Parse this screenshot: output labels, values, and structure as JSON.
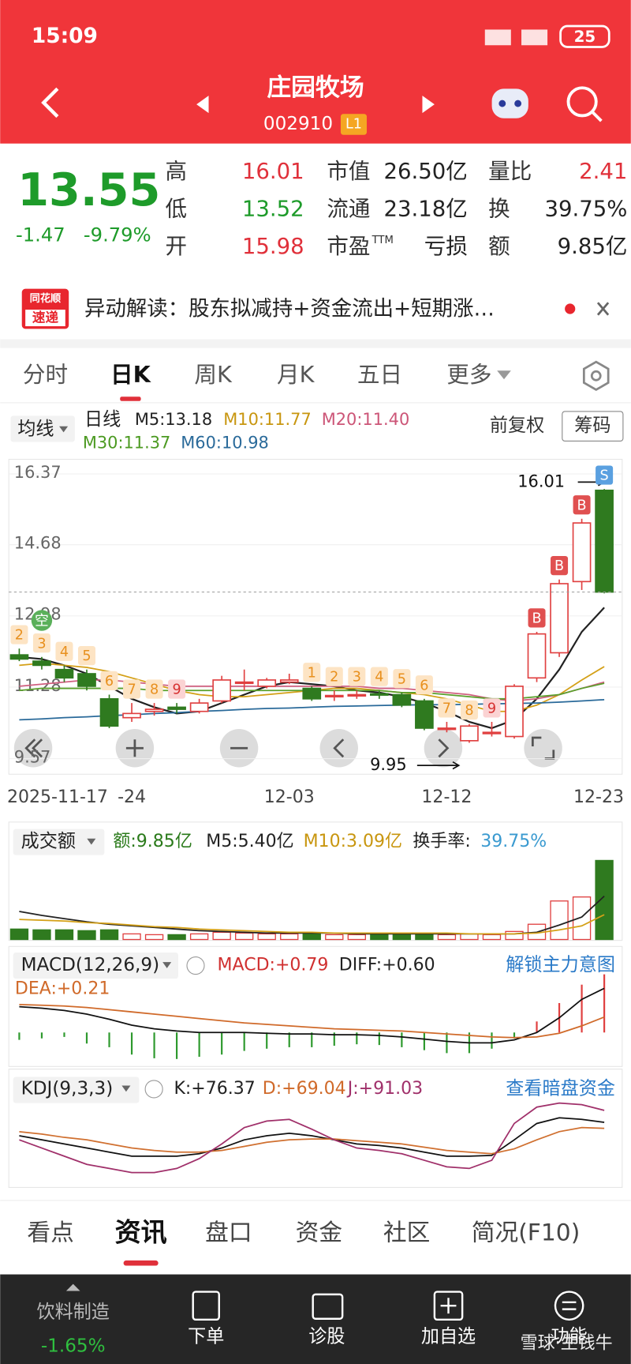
{
  "status": {
    "time": "15:09",
    "battery": "25"
  },
  "header": {
    "title": "庄园牧场",
    "code": "002910",
    "level": "L1"
  },
  "quote": {
    "price": "13.55",
    "change": "-1.47",
    "pct": "-9.79%",
    "fields": [
      [
        {
          "label": "高",
          "value": "16.01"
        },
        {
          "label": "市值",
          "value": "26.50亿"
        },
        {
          "label": "量比",
          "value": "2.41"
        }
      ],
      [
        {
          "label": "低",
          "value": "13.52"
        },
        {
          "label": "流通",
          "value": "23.18亿"
        },
        {
          "label": "换",
          "value": "39.75%"
        }
      ],
      [
        {
          "label": "开",
          "value": "15.98"
        },
        {
          "label": "市盈",
          "sup": "TTM",
          "value": "亏损"
        },
        {
          "label": "额",
          "value": "9.85亿"
        }
      ]
    ]
  },
  "news": {
    "logo_top": "同花顺",
    "logo_bottom": "速递",
    "text": "异动解读：股东拟减持+资金流出+短期涨…"
  },
  "tabs": {
    "items": [
      "分时",
      "日K",
      "周K",
      "月K",
      "五日",
      "更多"
    ],
    "active": 1
  },
  "ma_bar": {
    "selector": "均线",
    "period": "日线",
    "labels": [
      {
        "text": "M5:13.18",
        "color": "#222222"
      },
      {
        "text": "M10:11.77",
        "color": "#c8960f"
      },
      {
        "text": "M20:11.40",
        "color": "#cc5577"
      },
      {
        "text": "M30:11.37",
        "color": "#4c9a22"
      },
      {
        "text": "M60:10.98",
        "color": "#2a6a9a"
      }
    ],
    "adjust": "前复权",
    "chips": "筹码"
  },
  "kline": {
    "type": "candlestick",
    "ylim": [
      9.2,
      16.72
    ],
    "yticks": [
      16.37,
      14.68,
      12.98,
      11.28,
      9.57
    ],
    "categories": [
      "2025-11-17",
      null,
      null,
      null,
      null,
      "-24",
      null,
      null,
      null,
      null,
      null,
      null,
      "12-03",
      null,
      null,
      null,
      null,
      null,
      null,
      "12-12",
      null,
      null,
      null,
      null,
      null,
      null,
      "12-23"
    ],
    "open": [
      12.05,
      11.9,
      11.7,
      11.6,
      11.0,
      10.55,
      10.7,
      10.8,
      10.7,
      10.95,
      11.4,
      11.3,
      11.4,
      11.25,
      11.05,
      11.1,
      11.12,
      11.1,
      10.95,
      10.3,
      10.0,
      10.2,
      10.1,
      11.5,
      12.1,
      13.8,
      15.98
    ],
    "high": [
      12.2,
      12.0,
      11.8,
      11.7,
      11.1,
      10.9,
      10.9,
      10.9,
      11.0,
      11.55,
      11.7,
      11.5,
      11.6,
      11.3,
      11.2,
      11.2,
      11.2,
      11.15,
      11.0,
      10.45,
      10.4,
      10.45,
      11.35,
      12.6,
      13.85,
      15.3,
      16.01
    ],
    "low": [
      11.9,
      11.7,
      11.4,
      11.2,
      10.3,
      10.45,
      10.6,
      10.65,
      10.65,
      10.9,
      11.2,
      11.25,
      11.35,
      10.95,
      10.95,
      11.0,
      11.0,
      10.8,
      10.25,
      10.2,
      9.95,
      10.1,
      10.05,
      11.4,
      12.0,
      13.6,
      13.52
    ],
    "close": [
      11.95,
      11.8,
      11.5,
      11.3,
      10.35,
      10.65,
      10.75,
      10.75,
      10.9,
      11.45,
      11.4,
      11.45,
      11.45,
      11.0,
      11.08,
      11.1,
      11.1,
      10.85,
      10.3,
      10.3,
      10.35,
      10.2,
      11.3,
      12.55,
      13.75,
      15.2,
      13.55
    ],
    "ma": [
      {
        "name": "M5",
        "color": "#222222",
        "values": [
          12.0,
          11.95,
          11.8,
          11.6,
          11.3,
          11.0,
          10.8,
          10.65,
          10.7,
          10.9,
          11.1,
          11.3,
          11.4,
          11.35,
          11.3,
          11.2,
          11.15,
          11.05,
          10.9,
          10.7,
          10.45,
          10.3,
          10.5,
          11.0,
          11.7,
          12.6,
          13.18
        ]
      },
      {
        "name": "M10",
        "color": "#d4a017",
        "values": [
          11.8,
          11.85,
          11.8,
          11.75,
          11.65,
          11.5,
          11.35,
          11.2,
          11.1,
          11.05,
          11.05,
          11.1,
          11.15,
          11.2,
          11.25,
          11.25,
          11.2,
          11.15,
          11.1,
          11.0,
          10.85,
          10.7,
          10.7,
          10.85,
          11.1,
          11.45,
          11.77
        ]
      },
      {
        "name": "M20",
        "color": "#d06080",
        "values": [
          11.3,
          11.35,
          11.4,
          11.45,
          11.45,
          11.4,
          11.35,
          11.3,
          11.3,
          11.3,
          11.3,
          11.3,
          11.3,
          11.3,
          11.3,
          11.3,
          11.25,
          11.25,
          11.2,
          11.15,
          11.1,
          11.0,
          10.95,
          11.0,
          11.1,
          11.25,
          11.4
        ]
      },
      {
        "name": "M30",
        "color": "#5aa02c",
        "values": [
          11.2,
          11.25,
          11.25,
          11.25,
          11.25,
          11.25,
          11.2,
          11.2,
          11.2,
          11.2,
          11.2,
          11.2,
          11.2,
          11.2,
          11.2,
          11.2,
          11.2,
          11.15,
          11.15,
          11.1,
          11.05,
          11.0,
          11.0,
          11.05,
          11.1,
          11.25,
          11.37
        ]
      },
      {
        "name": "M60",
        "color": "#2a6a9a",
        "values": [
          10.5,
          10.52,
          10.55,
          10.57,
          10.6,
          10.62,
          10.65,
          10.67,
          10.7,
          10.72,
          10.75,
          10.77,
          10.78,
          10.8,
          10.82,
          10.83,
          10.84,
          10.85,
          10.86,
          10.86,
          10.87,
          10.88,
          10.89,
          10.9,
          10.92,
          10.95,
          10.98
        ]
      }
    ],
    "high_label": "16.01",
    "low_label": "9.95",
    "badges": [
      {
        "label": "2",
        "day": 0
      },
      {
        "label": "3",
        "day": 1
      },
      {
        "label": "空",
        "day": 1
      },
      {
        "label": "4",
        "day": 2
      },
      {
        "label": "5",
        "day": 3
      },
      {
        "label": "6",
        "day": 4
      },
      {
        "label": "7",
        "day": 5
      },
      {
        "label": "8",
        "day": 6
      },
      {
        "label": "9",
        "day": 7
      },
      {
        "label": "1",
        "day": 13
      },
      {
        "label": "2",
        "day": 14
      },
      {
        "label": "3",
        "day": 15
      },
      {
        "label": "4",
        "day": 16
      },
      {
        "label": "5",
        "day": 17
      },
      {
        "label": "6",
        "day": 18
      },
      {
        "label": "7",
        "day": 19
      },
      {
        "label": "8",
        "day": 20
      },
      {
        "label": "9",
        "day": 21
      },
      {
        "label": "B",
        "day": 23
      },
      {
        "label": "B",
        "day": 24
      },
      {
        "label": "B",
        "day": 25
      },
      {
        "label": "S",
        "day": 26
      }
    ]
  },
  "volume": {
    "selector": "成交额",
    "amount": "额:9.85亿",
    "m5": "M5:5.40亿",
    "m10": "M10:3.09亿",
    "turnover_label": "换手率:",
    "turnover": "39.75%",
    "ylim": [
      0,
      10.3
    ],
    "values": [
      1.3,
      1.2,
      1.2,
      1.1,
      1.2,
      0.7,
      0.6,
      0.6,
      0.7,
      0.9,
      0.8,
      0.7,
      0.7,
      0.8,
      0.6,
      0.6,
      0.6,
      0.7,
      0.8,
      0.6,
      0.7,
      0.6,
      1.0,
      1.9,
      4.8,
      5.3,
      9.85
    ],
    "ma5": [
      3.5,
      3.0,
      2.6,
      2.2,
      1.9,
      1.7,
      1.5,
      1.3,
      1.1,
      1.0,
      0.9,
      0.8,
      0.8,
      0.8,
      0.8,
      0.7,
      0.7,
      0.7,
      0.7,
      0.7,
      0.7,
      0.7,
      0.7,
      0.9,
      1.8,
      2.8,
      5.4
    ],
    "ma10": [
      2.5,
      2.4,
      2.3,
      2.1,
      2.0,
      1.8,
      1.6,
      1.5,
      1.3,
      1.2,
      1.1,
      1.0,
      0.9,
      0.9,
      0.8,
      0.8,
      0.8,
      0.8,
      0.8,
      0.8,
      0.7,
      0.7,
      0.7,
      0.8,
      1.2,
      1.7,
      3.09
    ]
  },
  "macd": {
    "name": "MACD(12,26,9)",
    "macd": "MACD:+0.79",
    "diff": "DIFF:+0.60",
    "dea": "DEA:+0.21",
    "link": "解锁主力意图",
    "ylim": [
      -0.45,
      0.85
    ],
    "hist": [
      -0.1,
      -0.08,
      -0.06,
      -0.15,
      -0.2,
      -0.3,
      -0.35,
      -0.36,
      -0.33,
      -0.3,
      -0.25,
      -0.22,
      -0.2,
      -0.2,
      -0.18,
      -0.16,
      -0.17,
      -0.2,
      -0.24,
      -0.28,
      -0.28,
      -0.22,
      -0.08,
      0.15,
      0.4,
      0.65,
      0.79
    ],
    "diff_values": [
      0.35,
      0.33,
      0.3,
      0.25,
      0.18,
      0.1,
      0.05,
      0.02,
      0.0,
      0.0,
      0.0,
      -0.01,
      -0.02,
      -0.02,
      -0.03,
      -0.03,
      -0.04,
      -0.06,
      -0.09,
      -0.12,
      -0.14,
      -0.14,
      -0.1,
      0.0,
      0.2,
      0.45,
      0.6
    ],
    "dea_values": [
      0.38,
      0.37,
      0.36,
      0.34,
      0.31,
      0.28,
      0.25,
      0.22,
      0.19,
      0.16,
      0.13,
      0.11,
      0.09,
      0.07,
      0.05,
      0.04,
      0.03,
      0.02,
      0.0,
      -0.02,
      -0.04,
      -0.06,
      -0.07,
      -0.06,
      -0.01,
      0.09,
      0.21
    ]
  },
  "kdj": {
    "name": "KDJ(9,3,3)",
    "k": "K:+76.37",
    "d": "D:+69.04",
    "j": "J:+91.03",
    "link": "查看暗盘资金",
    "ylim": [
      0,
      100
    ],
    "k_values": [
      60,
      55,
      50,
      45,
      40,
      35,
      35,
      35,
      38,
      45,
      55,
      60,
      63,
      60,
      55,
      50,
      48,
      45,
      40,
      35,
      35,
      36,
      55,
      75,
      82,
      80,
      76.37
    ],
    "d_values": [
      65,
      62,
      58,
      55,
      50,
      45,
      42,
      40,
      40,
      42,
      47,
      52,
      55,
      56,
      56,
      54,
      52,
      50,
      46,
      42,
      40,
      38,
      44,
      55,
      65,
      70,
      69.04
    ],
    "j_values": [
      55,
      45,
      35,
      25,
      20,
      15,
      15,
      20,
      32,
      50,
      70,
      78,
      80,
      68,
      55,
      45,
      42,
      38,
      30,
      22,
      20,
      30,
      75,
      95,
      100,
      98,
      91.03
    ]
  },
  "bottom_tabs": {
    "items": [
      "看点",
      "资讯",
      "盘口",
      "资金",
      "社区",
      "简况(F10)"
    ],
    "active": 1
  },
  "footer": {
    "sector": "饮料制造",
    "sector_pct": "-1.65%",
    "actions": [
      "下单",
      "诊股",
      "加自选",
      "功能"
    ],
    "watermark": "雪球·生钱牛"
  }
}
